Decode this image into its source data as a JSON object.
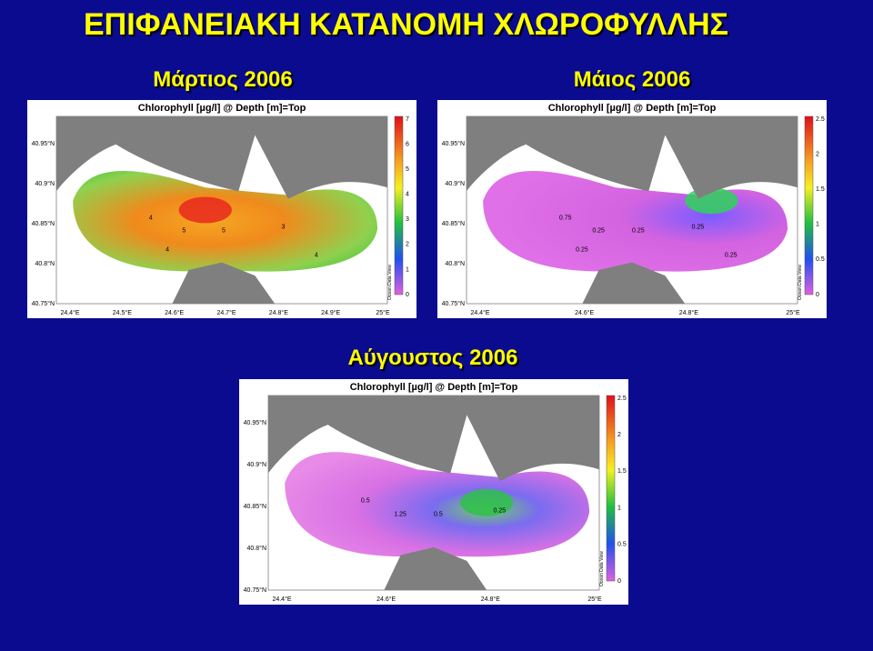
{
  "title": "ΕΠΙΦΑΝΕΙΑΚΗ ΚΑΤΑΝΟΜΗ ΧΛΩΡΟΦΥΛΛΗΣ",
  "maps": [
    {
      "subtitle": "Μάρτιος 2006",
      "title": "Chlorophyll [µg/l] @ Depth [m]=Top",
      "lat_labels": [
        "40.95°N",
        "40.9°N",
        "40.85°N",
        "40.8°N",
        "40.75°N"
      ],
      "lon_labels": [
        "24.4°E",
        "24.5°E",
        "24.6°E",
        "24.7°E",
        "24.8°E",
        "24.9°E",
        "25°E"
      ],
      "colorbar_labels": [
        "7",
        "6",
        "5",
        "4",
        "3",
        "2",
        "1",
        "0"
      ],
      "credit": "Ocean Data View",
      "contour_labels": [
        "4",
        "5",
        "5",
        "3",
        "4",
        "4"
      ]
    },
    {
      "subtitle": "Μάιος 2006",
      "title": "Chlorophyll [µg/l] @ Depth [m]=Top",
      "lat_labels": [
        "40.95°N",
        "40.9°N",
        "40.85°N",
        "40.8°N",
        "40.75°N"
      ],
      "lon_labels": [
        "24.4°E",
        "24.6°E",
        "24.8°E",
        "25°E"
      ],
      "colorbar_labels": [
        "2.5",
        "2",
        "1.5",
        "1",
        "0.5",
        "0"
      ],
      "credit": "Ocean Data View",
      "contour_labels": [
        "0.75",
        "0.25",
        "0.25",
        "0.25",
        "0.25",
        "0.25"
      ]
    },
    {
      "subtitle": "Αύγουστος 2006",
      "title": "Chlorophyll [µg/l] @ Depth [m]=Top",
      "lat_labels": [
        "40.95°N",
        "40.9°N",
        "40.85°N",
        "40.8°N",
        "40.75°N"
      ],
      "lon_labels": [
        "24.4°E",
        "24.6°E",
        "24.8°E",
        "25°E"
      ],
      "colorbar_labels": [
        "2.5",
        "2",
        "1.5",
        "1",
        "0.5",
        "0"
      ],
      "credit": "Ocean Data View",
      "contour_labels": [
        "0.5",
        "1.25",
        "0.5",
        "0.25"
      ]
    }
  ]
}
